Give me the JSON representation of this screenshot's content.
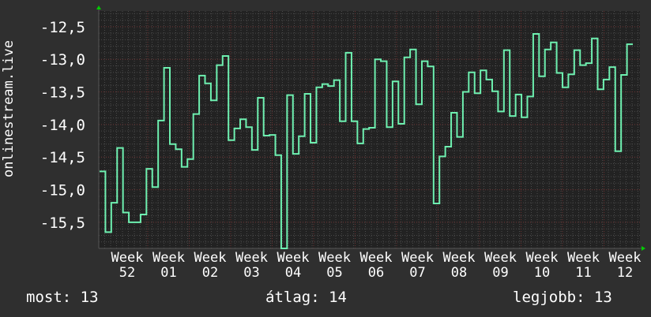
{
  "chart_data": {
    "type": "line",
    "style": "step",
    "ylabel": "onlinestream.live",
    "ylim": [
      -15.9,
      -12.26
    ],
    "yticks": [
      "-12,5",
      "-13,0",
      "-13,5",
      "-14,0",
      "-14,5",
      "-15,0",
      "-15,5"
    ],
    "ytick_values": [
      -12.5,
      -13.0,
      -13.5,
      -14.0,
      -14.5,
      -15.0,
      -15.5
    ],
    "xticks": [
      "Week 52",
      "Week 01",
      "Week 02",
      "Week 03",
      "Week 04",
      "Week 05",
      "Week 06",
      "Week 07",
      "Week 08",
      "Week 09",
      "Week 10",
      "Week 11",
      "Week 12"
    ],
    "grid": true,
    "line_color": "#6ef0b0",
    "values": [
      -14.72,
      -15.65,
      -15.2,
      -14.36,
      -15.35,
      -15.5,
      -15.5,
      -15.38,
      -14.68,
      -14.96,
      -13.94,
      -13.13,
      -14.3,
      -14.38,
      -14.65,
      -14.53,
      -13.84,
      -13.25,
      -13.37,
      -13.63,
      -13.09,
      -12.95,
      -14.24,
      -14.06,
      -13.92,
      -14.04,
      -14.39,
      -13.59,
      -14.17,
      -14.16,
      -14.47,
      -15.9,
      -13.55,
      -14.45,
      -14.18,
      -13.53,
      -14.28,
      -13.43,
      -13.38,
      -13.41,
      -13.32,
      -13.95,
      -12.9,
      -13.95,
      -14.29,
      -14.07,
      -14.05,
      -13.0,
      -13.03,
      -14.04,
      -13.34,
      -13.99,
      -12.97,
      -12.85,
      -13.69,
      -13.03,
      -13.11,
      -15.21,
      -14.49,
      -14.34,
      -13.82,
      -14.19,
      -13.5,
      -13.2,
      -13.52,
      -13.17,
      -13.31,
      -13.49,
      -13.8,
      -12.86,
      -13.87,
      -13.54,
      -13.89,
      -13.57,
      -12.61,
      -13.26,
      -12.85,
      -12.74,
      -13.21,
      -13.43,
      -13.23,
      -12.86,
      -13.09,
      -13.06,
      -12.68,
      -13.46,
      -13.31,
      -13.12,
      -14.41,
      -13.24,
      -12.77
    ]
  },
  "legend": {
    "current": "most: 13",
    "average": "átlag: 14",
    "max": "legjobb: 13"
  }
}
